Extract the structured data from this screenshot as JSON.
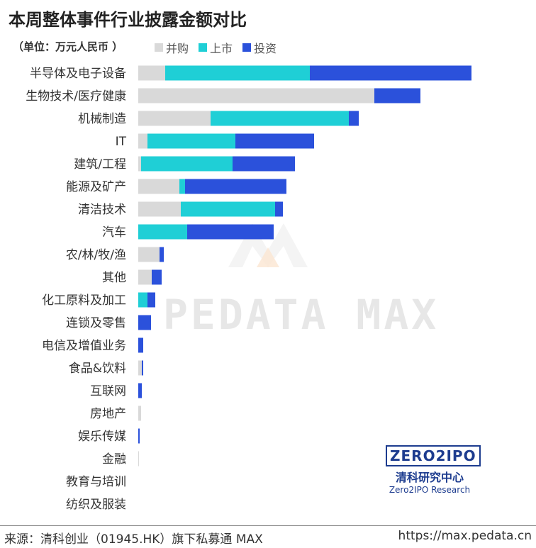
{
  "title": "本周整体事件行业披露金额对比",
  "unit": "（单位：万元人民币 ）",
  "colors": {
    "bingou": "#d9d9d9",
    "shangshi": "#1fcfd6",
    "touzi": "#2b51db"
  },
  "watermark": "PEDATA MAX",
  "brand": {
    "logo": "ZERO2IPO",
    "cn": "清科研究中心",
    "en": "Zero2IPO Research"
  },
  "footer": {
    "source": "来源：清科创业（01945.HK）旗下私募通 MAX",
    "url": "https://max.pedata.cn"
  },
  "chart_data": {
    "type": "bar",
    "orientation": "horizontal",
    "stacked": true,
    "title": "本周整体事件行业披露金额对比",
    "unit": "万元人民币",
    "categories": [
      "半导体及电子设备",
      "生物技术/医疗健康",
      "机械制造",
      "IT",
      "建筑/工程",
      "能源及矿产",
      "清洁技术",
      "汽车",
      "农/林/牧/渔",
      "其他",
      "化工原料及加工",
      "连锁及零售",
      "电信及增值业务",
      "食品&饮料",
      "互联网",
      "房地产",
      "娱乐传媒",
      "金融",
      "教育与培训",
      "纺织及服装"
    ],
    "series": [
      {
        "name": "并购",
        "color": "#d9d9d9",
        "values": [
          38,
          333,
          102,
          13,
          4,
          58,
          60,
          0,
          30,
          19,
          0,
          0,
          0,
          5,
          0,
          4,
          0,
          1,
          0,
          0
        ]
      },
      {
        "name": "上市",
        "color": "#1fcfd6",
        "values": [
          204,
          0,
          195,
          124,
          129,
          8,
          133,
          69,
          0,
          0,
          13,
          0,
          0,
          0,
          0,
          0,
          0,
          0,
          0,
          0
        ]
      },
      {
        "name": "投资",
        "color": "#2b51db",
        "values": [
          228,
          65,
          14,
          111,
          88,
          143,
          11,
          122,
          6,
          14,
          11,
          18,
          7,
          2,
          5,
          0,
          2,
          0,
          0,
          0
        ]
      }
    ],
    "legend_position": "top",
    "grid": false,
    "x_axis_visible": false
  }
}
